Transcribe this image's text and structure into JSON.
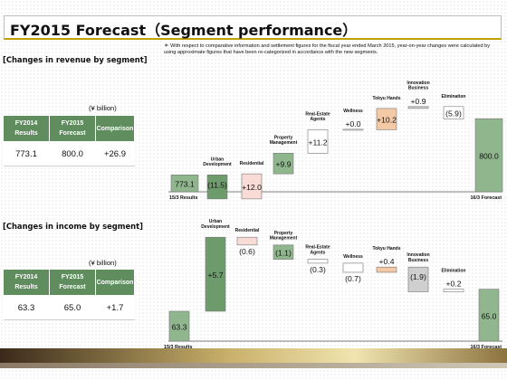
{
  "title": "FY2015 Forecast（Segment performance）",
  "note": "＊ With respect to comparative information and settlement figures for the fiscal year ended March 2015, year-on-year changes were calculated by using approximate figures that have been re-categorized in accordance with the new segments.",
  "colors": {
    "accent": "#bfa100",
    "table_header": "#5f8d5e",
    "bar_green": "#8fb68c",
    "bar_green_dark": "#6e9b6c",
    "bar_pink": "#f8dcd5",
    "bar_peach": "#f4c9a5",
    "bar_gray": "#cfcfcf"
  },
  "revenue_section": {
    "label": "[Changes in revenue by segment]",
    "unit": "(¥ billion)",
    "table": {
      "headers": [
        "FY2014\nResults",
        "FY2015\nForecast",
        "Comparison"
      ],
      "values": [
        "773.1",
        "800.0",
        "+26.9"
      ]
    }
  },
  "income_section": {
    "label": "[Changes in income by segment]",
    "unit": "(¥ billion)",
    "table": {
      "headers": [
        "FY2014\nResults",
        "FY2015\nForecast",
        "Comparison"
      ],
      "values": [
        "63.3",
        "65.0",
        "+1.7"
      ]
    }
  },
  "chart_data": [
    {
      "type": "bar",
      "subtype": "waterfall",
      "title": "[Changes in revenue by segment]",
      "unit": "¥ billion",
      "categories": [
        "15/3 Results",
        "Urban\nDevelopment",
        "Residential",
        "Property\nManagement",
        "Real-Estate\nAgents",
        "Wellness",
        "Tokyu Hands",
        "Innovation\nBusiness",
        "Elimination",
        "16/3 Forecast"
      ],
      "values": [
        773.1,
        -11.5,
        12.0,
        9.9,
        11.2,
        0.0,
        10.2,
        0.9,
        -5.9,
        800.0
      ],
      "labels": [
        "773.1",
        "(11.5)",
        "+12.0",
        "+9.9",
        "+11.2",
        "+0.0",
        "+10.2",
        "+0.9",
        "(5.9)",
        "800.0"
      ],
      "kinds": [
        "total",
        "delta",
        "delta",
        "delta",
        "delta",
        "delta",
        "delta",
        "delta",
        "delta",
        "total"
      ]
    },
    {
      "type": "bar",
      "subtype": "waterfall",
      "title": "[Changes in income by segment]",
      "unit": "¥ billion",
      "categories": [
        "15/3 Results",
        "Urban\nDevelopment",
        "Residential",
        "Property\nManagement",
        "Real-Estate\nAgents",
        "Wellness",
        "Tokyu Hands",
        "Innovation\nBusiness",
        "Elimination",
        "16/3 Forecast"
      ],
      "values": [
        63.3,
        5.7,
        -0.6,
        -1.1,
        -0.3,
        -0.7,
        0.4,
        -1.9,
        0.2,
        65.0
      ],
      "labels": [
        "63.3",
        "+5.7",
        "(0.6)",
        "(1.1)",
        "(0.3)",
        "(0.7)",
        "+0.4",
        "(1.9)",
        "+0.2",
        "65.0"
      ],
      "kinds": [
        "total",
        "delta",
        "delta",
        "delta",
        "delta",
        "delta",
        "delta",
        "delta",
        "delta",
        "total"
      ]
    }
  ]
}
